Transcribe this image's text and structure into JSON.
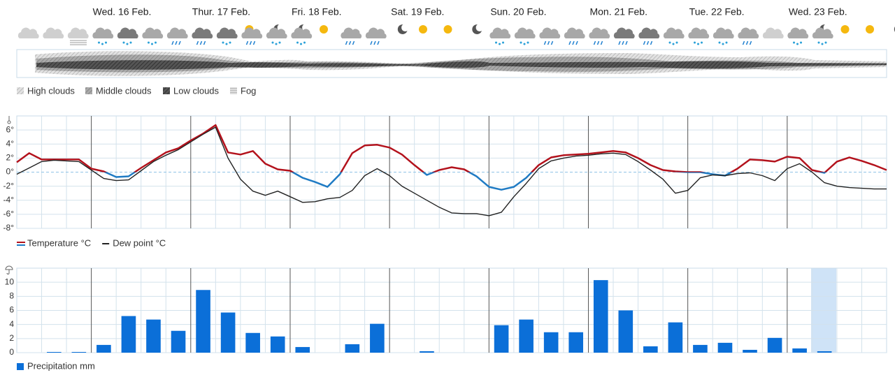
{
  "cloud_legend": [
    "High clouds",
    "Middle clouds",
    "Low clouds",
    "Fog"
  ],
  "chart_data": [
    {
      "type": "line",
      "x": [
        0,
        3,
        6,
        9,
        12,
        15,
        18,
        21,
        24,
        27,
        30,
        33,
        36,
        39,
        42,
        45,
        48,
        51,
        54,
        57,
        60,
        63,
        66,
        69,
        72,
        75,
        78,
        81,
        84,
        87,
        90,
        93,
        96,
        99,
        102,
        105,
        108,
        111,
        114,
        117,
        120,
        123,
        126,
        129,
        132,
        135,
        138,
        141,
        144,
        147,
        150,
        153,
        156,
        159,
        162,
        165,
        168,
        171,
        174,
        177,
        180,
        183,
        186,
        189,
        192,
        195,
        198,
        201,
        204,
        207,
        210
      ],
      "xlim": [
        0,
        210
      ],
      "xticks": [
        {
          "value": 18,
          "label": "Wed. 16 Feb."
        },
        {
          "value": 42,
          "label": "Thur. 17 Feb."
        },
        {
          "value": 66,
          "label": "Fri. 18 Feb."
        },
        {
          "value": 90,
          "label": "Sat. 19 Feb."
        },
        {
          "value": 114,
          "label": "Sun. 20 Feb."
        },
        {
          "value": 138,
          "label": "Mon. 21 Feb."
        },
        {
          "value": 162,
          "label": "Tue. 22 Feb."
        },
        {
          "value": 186,
          "label": "Wed. 23 Feb."
        }
      ],
      "xgrid": [
        6,
        12,
        24,
        30,
        36,
        48,
        54,
        60,
        72,
        78,
        84,
        96,
        102,
        108,
        120,
        126,
        132,
        144,
        150,
        156,
        168,
        174,
        180,
        192,
        198,
        204
      ],
      "ylim": [
        -8,
        8
      ],
      "yticks": [
        {
          "value": -8,
          "label": "-8°"
        },
        {
          "value": -6,
          "label": "-6°"
        },
        {
          "value": -4,
          "label": "-4°"
        },
        {
          "value": -2,
          "label": "-2°"
        },
        {
          "value": 0,
          "label": "0°"
        },
        {
          "value": 2,
          "label": "2°"
        },
        {
          "value": 4,
          "label": "4°"
        },
        {
          "value": 6,
          "label": "6°"
        }
      ],
      "grid": true,
      "series": [
        {
          "name": "Temperature °C",
          "color": "#b3121c",
          "color_below_zero": "#1f7bc4",
          "values": [
            1.4,
            2.7,
            1.8,
            1.8,
            1.8,
            1.8,
            0.5,
            0.1,
            -0.7,
            -0.6,
            0.6,
            1.7,
            2.8,
            3.4,
            4.5,
            5.5,
            6.7,
            2.8,
            2.5,
            3.0,
            1.2,
            0.4,
            0.2,
            -0.8,
            -1.4,
            -2.1,
            -0.3,
            2.7,
            3.8,
            3.9,
            3.5,
            2.5,
            1.0,
            -0.4,
            0.3,
            0.7,
            0.4,
            -0.6,
            -2.1,
            -2.5,
            -2.1,
            -0.8,
            1.0,
            2.1,
            2.4,
            2.5,
            2.6,
            2.8,
            3.0,
            2.8,
            2.0,
            1.0,
            0.3,
            0.1,
            0.0,
            0.0,
            -0.3,
            -0.5,
            0.5,
            1.8,
            1.7,
            1.5,
            2.2,
            2.0,
            0.3,
            -0.1,
            1.5,
            2.1,
            1.6,
            1.0,
            0.3
          ]
        },
        {
          "name": "Dew point °C",
          "color": "#222222",
          "values": [
            -0.3,
            0.6,
            1.5,
            1.7,
            1.6,
            1.5,
            0.3,
            -0.9,
            -1.2,
            -1.1,
            0.2,
            1.5,
            2.4,
            3.2,
            4.3,
            5.4,
            6.4,
            2.0,
            -1.0,
            -2.7,
            -3.3,
            -2.7,
            -3.5,
            -4.3,
            -4.2,
            -3.8,
            -3.6,
            -2.6,
            -0.5,
            0.5,
            -0.5,
            -2.0,
            -3.0,
            -4.0,
            -5.0,
            -5.8,
            -5.9,
            -5.9,
            -6.2,
            -5.7,
            -3.5,
            -1.6,
            0.5,
            1.6,
            2.0,
            2.3,
            2.4,
            2.6,
            2.7,
            2.5,
            1.5,
            0.3,
            -1.0,
            -3.0,
            -2.6,
            -0.8,
            -0.4,
            -0.5,
            -0.2,
            -0.1,
            -0.5,
            -1.2,
            0.5,
            1.2,
            0.0,
            -1.5,
            -2.0,
            -2.2,
            -2.3,
            -2.4,
            -2.4
          ]
        }
      ]
    },
    {
      "type": "bar",
      "x": [
        9,
        15,
        21,
        27,
        33,
        39,
        45,
        51,
        57,
        63,
        69,
        75,
        81,
        87,
        93,
        99,
        105,
        111,
        117,
        123,
        129,
        135,
        141,
        147,
        153,
        159,
        165,
        171,
        177,
        183,
        189,
        195,
        201,
        207
      ],
      "xlim": [
        0,
        210
      ],
      "ylim": [
        0,
        12
      ],
      "yticks": [
        0,
        2,
        4,
        6,
        8,
        10
      ],
      "grid": true,
      "series": [
        {
          "name": "Precipitation mm",
          "color": "#0b6fd8",
          "values": [
            0.1,
            0.1,
            1.1,
            5.2,
            4.7,
            3.1,
            8.9,
            5.7,
            2.8,
            2.3,
            0.8,
            0,
            1.2,
            4.1,
            0,
            0.2,
            0,
            0,
            3.9,
            4.7,
            2.9,
            2.9,
            10.3,
            6.0,
            0.9,
            4.3,
            1.1,
            1.4,
            0.4,
            2.1,
            0.6,
            0.2,
            0,
            0
          ]
        }
      ]
    }
  ]
}
